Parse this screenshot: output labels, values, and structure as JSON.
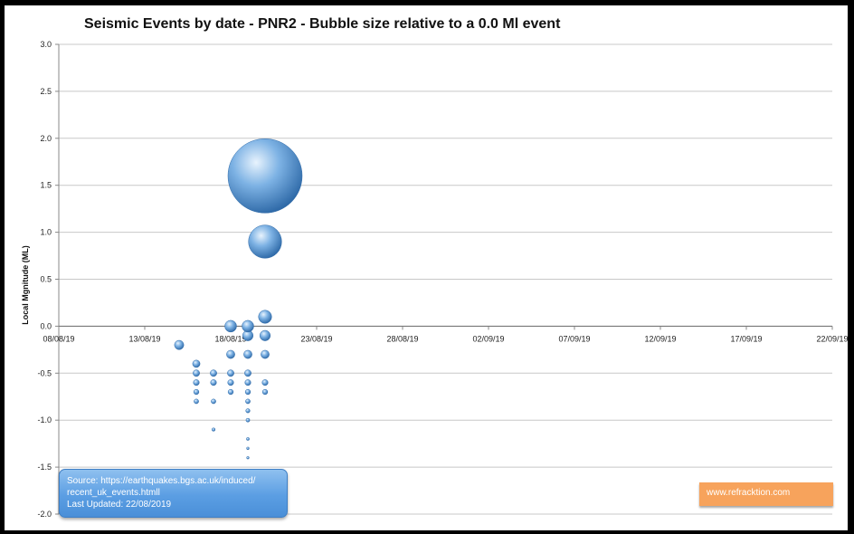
{
  "chart_data": {
    "type": "bubble",
    "title": "Seismic Events by date - PNR2 - Bubble size relative to a 0.0 Ml event",
    "xlabel": "",
    "ylabel": "Local Mgnitude (ML)",
    "x_ticks": [
      "08/08/19",
      "13/08/19",
      "18/08/19",
      "23/08/19",
      "28/08/19",
      "02/09/19",
      "07/09/19",
      "12/09/19",
      "17/09/19",
      "22/09/19"
    ],
    "xlim": [
      "2019-08-08",
      "2019-09-22"
    ],
    "ylim": [
      -2.0,
      3.0
    ],
    "y_ticks": [
      "3.0",
      "2.5",
      "2.0",
      "1.5",
      "1.0",
      "0.5",
      "0.0",
      "-0.5",
      "-1.0",
      "-1.5",
      "-2.0"
    ],
    "grid": true,
    "points": [
      {
        "x": "2019-08-15",
        "y": -0.2
      },
      {
        "x": "2019-08-16",
        "y": -0.4
      },
      {
        "x": "2019-08-16",
        "y": -0.5
      },
      {
        "x": "2019-08-16",
        "y": -0.6
      },
      {
        "x": "2019-08-16",
        "y": -0.7
      },
      {
        "x": "2019-08-16",
        "y": -0.8
      },
      {
        "x": "2019-08-17",
        "y": -0.5
      },
      {
        "x": "2019-08-17",
        "y": -0.6
      },
      {
        "x": "2019-08-17",
        "y": -0.8
      },
      {
        "x": "2019-08-17",
        "y": -1.1
      },
      {
        "x": "2019-08-18",
        "y": 0.0
      },
      {
        "x": "2019-08-18",
        "y": -0.3
      },
      {
        "x": "2019-08-18",
        "y": -0.5
      },
      {
        "x": "2019-08-18",
        "y": -0.6
      },
      {
        "x": "2019-08-18",
        "y": -0.7
      },
      {
        "x": "2019-08-19",
        "y": 0.0
      },
      {
        "x": "2019-08-19",
        "y": -0.1
      },
      {
        "x": "2019-08-19",
        "y": -0.3
      },
      {
        "x": "2019-08-19",
        "y": -0.5
      },
      {
        "x": "2019-08-19",
        "y": -0.6
      },
      {
        "x": "2019-08-19",
        "y": -0.7
      },
      {
        "x": "2019-08-19",
        "y": -0.8
      },
      {
        "x": "2019-08-19",
        "y": -0.9
      },
      {
        "x": "2019-08-19",
        "y": -1.0
      },
      {
        "x": "2019-08-19",
        "y": -1.2
      },
      {
        "x": "2019-08-19",
        "y": -1.3
      },
      {
        "x": "2019-08-19",
        "y": -1.4
      },
      {
        "x": "2019-08-20",
        "y": 1.6
      },
      {
        "x": "2019-08-20",
        "y": 0.9
      },
      {
        "x": "2019-08-20",
        "y": 0.1
      },
      {
        "x": "2019-08-20",
        "y": -0.1
      },
      {
        "x": "2019-08-20",
        "y": -0.3
      },
      {
        "x": "2019-08-20",
        "y": -0.6
      },
      {
        "x": "2019-08-20",
        "y": -0.7
      }
    ],
    "bubble_reference": 0.0,
    "colors": {
      "bubble": "#5b9bd5",
      "bubble_dark": "#2f6aa8",
      "bubble_light": "#d8ebfb",
      "grid": "#c8c8c8"
    }
  },
  "source_box": {
    "line1": "Source: https://earthquakes.bgs.ac.uk/induced/",
    "line2": "recent_uk_events.htmll",
    "line3": "Last Updated:  22/08/2019"
  },
  "brand_box": {
    "text": "www.refracktion.com",
    "color": "#f7a35c"
  }
}
